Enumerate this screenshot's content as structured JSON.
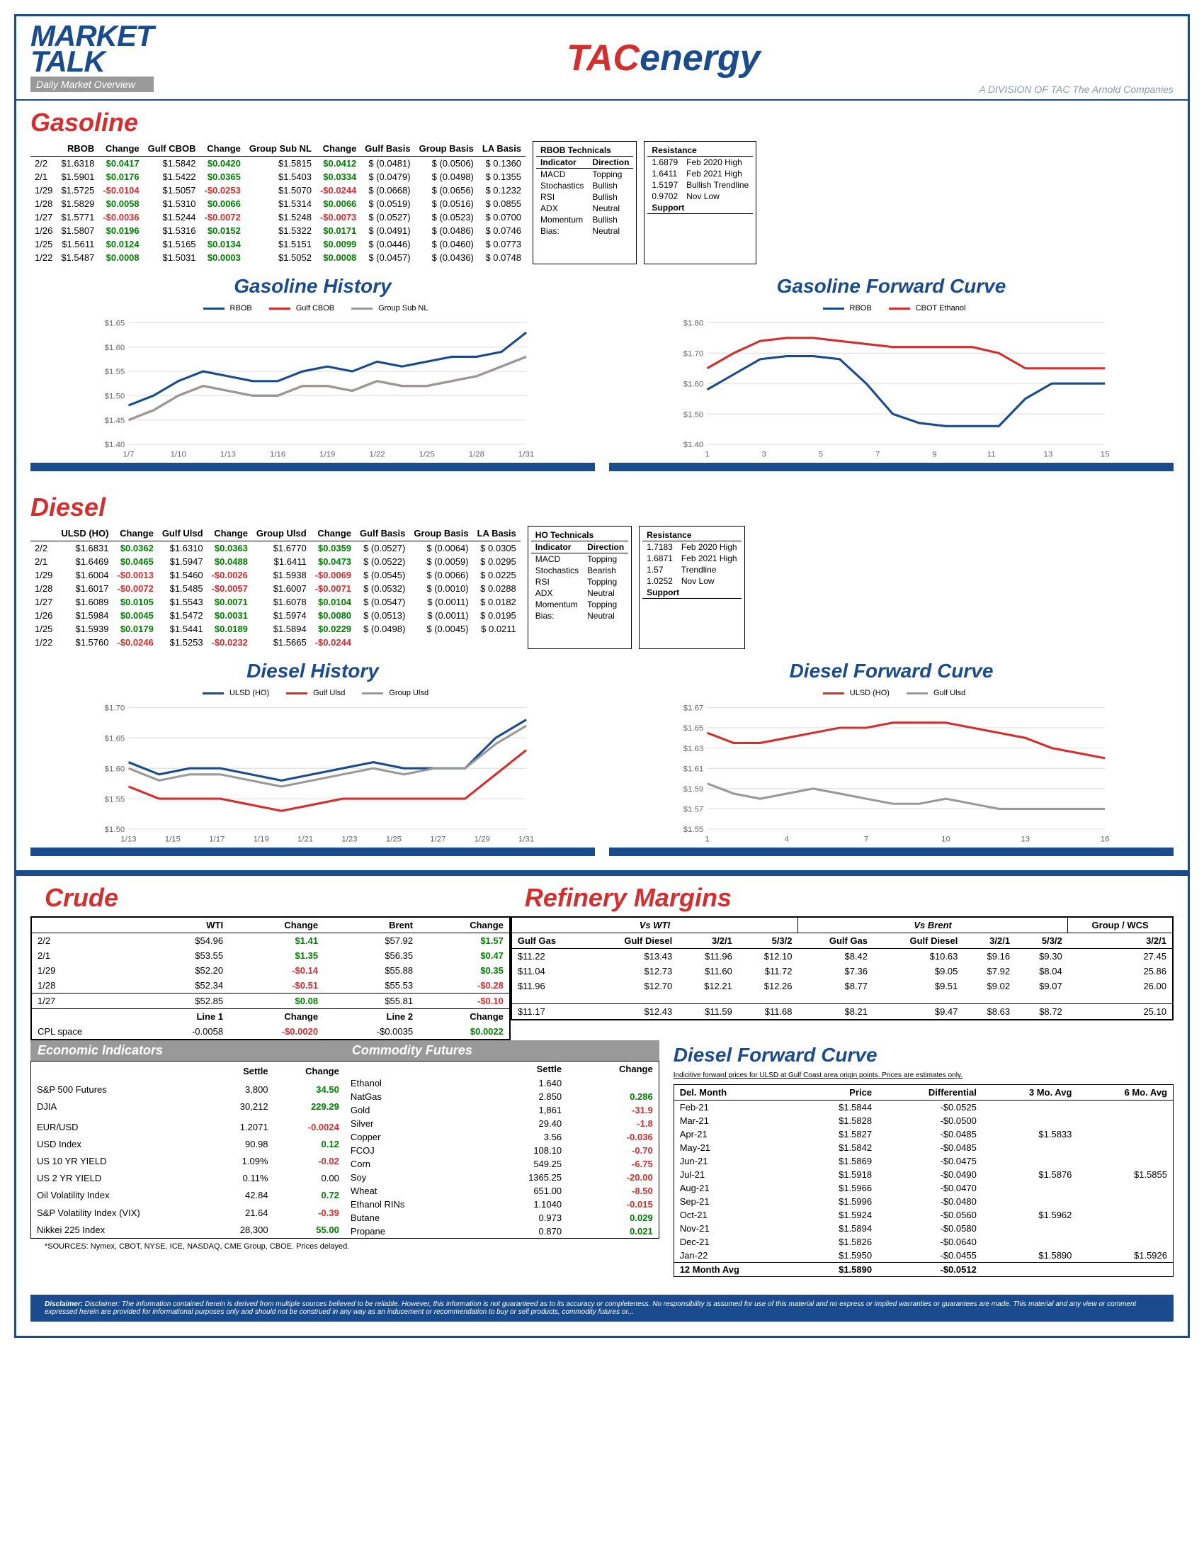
{
  "header": {
    "brand1": "MARKET",
    "brand2": "TALK",
    "sub": "Daily Market Overview",
    "tac_t": "TAC",
    "tac_e": "energy",
    "division": "A DIVISION OF TAC The Arnold Companies"
  },
  "gasoline": {
    "title": "Gasoline",
    "columns": [
      "",
      "RBOB",
      "Change",
      "Gulf CBOB",
      "Change",
      "Group Sub NL",
      "Change",
      "Gulf Basis",
      "Group Basis",
      "LA Basis"
    ],
    "rows": [
      [
        "2/2",
        "$1.6318",
        "$0.0417",
        "$1.5842",
        "$0.0420",
        "$1.5815",
        "$0.0412",
        "$ (0.0481)",
        "$ (0.0506)",
        "$ 0.1360"
      ],
      [
        "2/1",
        "$1.5901",
        "$0.0176",
        "$1.5422",
        "$0.0365",
        "$1.5403",
        "$0.0334",
        "$ (0.0479)",
        "$ (0.0498)",
        "$ 0.1355"
      ],
      [
        "1/29",
        "$1.5725",
        "-$0.0104",
        "$1.5057",
        "-$0.0253",
        "$1.5070",
        "-$0.0244",
        "$ (0.0668)",
        "$ (0.0656)",
        "$ 0.1232"
      ],
      [
        "1/28",
        "$1.5829",
        "$0.0058",
        "$1.5310",
        "$0.0066",
        "$1.5314",
        "$0.0066",
        "$ (0.0519)",
        "$ (0.0516)",
        "$ 0.0855"
      ],
      [
        "1/27",
        "$1.5771",
        "-$0.0036",
        "$1.5244",
        "-$0.0072",
        "$1.5248",
        "-$0.0073",
        "$ (0.0527)",
        "$ (0.0523)",
        "$ 0.0700"
      ],
      [
        "1/26",
        "$1.5807",
        "$0.0196",
        "$1.5316",
        "$0.0152",
        "$1.5322",
        "$0.0171",
        "$ (0.0491)",
        "$ (0.0486)",
        "$ 0.0746"
      ],
      [
        "1/25",
        "$1.5611",
        "$0.0124",
        "$1.5165",
        "$0.0134",
        "$1.5151",
        "$0.0099",
        "$ (0.0446)",
        "$ (0.0460)",
        "$ 0.0773"
      ],
      [
        "1/22",
        "$1.5487",
        "$0.0008",
        "$1.5031",
        "$0.0003",
        "$1.5052",
        "$0.0008",
        "$ (0.0457)",
        "$ (0.0436)",
        "$ 0.0748"
      ]
    ],
    "tech_title": "RBOB Technicals",
    "tech_hdr": [
      "Indicator",
      "Direction"
    ],
    "tech": [
      [
        "MACD",
        "Topping"
      ],
      [
        "Stochastics",
        "Bullish"
      ],
      [
        "RSI",
        "Bullish"
      ],
      [
        "ADX",
        "Neutral"
      ],
      [
        "Momentum",
        "Bullish"
      ],
      [
        "Bias:",
        "Neutral"
      ]
    ],
    "res_title": "Resistance",
    "res": [
      [
        "1.6879",
        "Feb 2020 High"
      ],
      [
        "1.6411",
        "Feb 2021 High"
      ],
      [
        "1.5197",
        "Bullish Trendline"
      ],
      [
        "0.9702",
        "Nov Low"
      ]
    ],
    "sup_title": "Support"
  },
  "gas_history": {
    "title": "Gasoline History",
    "legend": [
      {
        "name": "RBOB",
        "color": "#1a4b8c"
      },
      {
        "name": "Gulf CBOB",
        "color": "#d32f2f"
      },
      {
        "name": "Group Sub NL",
        "color": "#999"
      }
    ],
    "ylim": [
      1.4,
      1.65
    ],
    "yticks": [
      1.4,
      1.45,
      1.5,
      1.55,
      1.6,
      1.65
    ],
    "xlabels": [
      "1/7",
      "1/10",
      "1/13",
      "1/16",
      "1/19",
      "1/22",
      "1/25",
      "1/28",
      "1/31"
    ],
    "series": {
      "rbob": [
        1.48,
        1.5,
        1.53,
        1.55,
        1.54,
        1.53,
        1.53,
        1.55,
        1.56,
        1.55,
        1.57,
        1.56,
        1.57,
        1.58,
        1.58,
        1.59,
        1.63
      ],
      "gulf": [
        1.45,
        1.47,
        1.5,
        1.52,
        1.51,
        1.5,
        1.5,
        1.52,
        1.52,
        1.51,
        1.53,
        1.52,
        1.52,
        1.53,
        1.54,
        1.56,
        1.58
      ],
      "group": [
        1.45,
        1.47,
        1.5,
        1.52,
        1.51,
        1.5,
        1.5,
        1.52,
        1.52,
        1.51,
        1.53,
        1.52,
        1.52,
        1.53,
        1.54,
        1.56,
        1.58
      ]
    }
  },
  "gas_fwd": {
    "title": "Gasoline Forward Curve",
    "legend": [
      {
        "name": "RBOB",
        "color": "#1a4b8c"
      },
      {
        "name": "CBOT Ethanol",
        "color": "#d32f2f"
      }
    ],
    "ylim": [
      1.4,
      1.8
    ],
    "yticks": [
      1.4,
      1.5,
      1.6,
      1.7,
      1.8
    ],
    "xlabels": [
      "1",
      "3",
      "5",
      "7",
      "9",
      "11",
      "13",
      "15"
    ],
    "series": {
      "rbob": [
        1.58,
        1.63,
        1.68,
        1.69,
        1.69,
        1.68,
        1.6,
        1.5,
        1.47,
        1.46,
        1.46,
        1.46,
        1.55,
        1.6,
        1.6,
        1.6
      ],
      "ethanol": [
        1.65,
        1.7,
        1.74,
        1.75,
        1.75,
        1.74,
        1.73,
        1.72,
        1.72,
        1.72,
        1.72,
        1.7,
        1.65,
        1.65,
        1.65,
        1.65
      ]
    }
  },
  "diesel": {
    "title": "Diesel",
    "columns": [
      "",
      "ULSD (HO)",
      "Change",
      "Gulf Ulsd",
      "Change",
      "Group Ulsd",
      "Change",
      "Gulf Basis",
      "Group Basis",
      "LA Basis"
    ],
    "rows": [
      [
        "2/2",
        "$1.6831",
        "$0.0362",
        "$1.6310",
        "$0.0363",
        "$1.6770",
        "$0.0359",
        "$ (0.0527)",
        "$ (0.0064)",
        "$ 0.0305"
      ],
      [
        "2/1",
        "$1.6469",
        "$0.0465",
        "$1.5947",
        "$0.0488",
        "$1.6411",
        "$0.0473",
        "$ (0.0522)",
        "$ (0.0059)",
        "$ 0.0295"
      ],
      [
        "1/29",
        "$1.6004",
        "-$0.0013",
        "$1.5460",
        "-$0.0026",
        "$1.5938",
        "-$0.0069",
        "$ (0.0545)",
        "$ (0.0066)",
        "$ 0.0225"
      ],
      [
        "1/28",
        "$1.6017",
        "-$0.0072",
        "$1.5485",
        "-$0.0057",
        "$1.6007",
        "-$0.0071",
        "$ (0.0532)",
        "$ (0.0010)",
        "$ 0.0288"
      ],
      [
        "1/27",
        "$1.6089",
        "$0.0105",
        "$1.5543",
        "$0.0071",
        "$1.6078",
        "$0.0104",
        "$ (0.0547)",
        "$ (0.0011)",
        "$ 0.0182"
      ],
      [
        "1/26",
        "$1.5984",
        "$0.0045",
        "$1.5472",
        "$0.0031",
        "$1.5974",
        "$0.0080",
        "$ (0.0513)",
        "$ (0.0011)",
        "$ 0.0195"
      ],
      [
        "1/25",
        "$1.5939",
        "$0.0179",
        "$1.5441",
        "$0.0189",
        "$1.5894",
        "$0.0229",
        "$ (0.0498)",
        "$ (0.0045)",
        "$ 0.0211"
      ],
      [
        "1/22",
        "$1.5760",
        "-$0.0246",
        "$1.5253",
        "-$0.0232",
        "$1.5665",
        "-$0.0244",
        "",
        "",
        ""
      ]
    ],
    "tech_title": "HO Technicals",
    "tech_hdr": [
      "Indicator",
      "Direction"
    ],
    "tech": [
      [
        "MACD",
        "Topping"
      ],
      [
        "Stochastics",
        "Bearish"
      ],
      [
        "RSI",
        "Topping"
      ],
      [
        "ADX",
        "Neutral"
      ],
      [
        "Momentum",
        "Topping"
      ],
      [
        "Bias:",
        "Neutral"
      ]
    ],
    "res_title": "Resistance",
    "res": [
      [
        "1.7183",
        "Feb 2020 High"
      ],
      [
        "1.6871",
        "Feb 2021 High"
      ],
      [
        "1.57",
        "Trendline"
      ],
      [
        "1.0252",
        "Nov Low"
      ]
    ],
    "sup_title": "Support"
  },
  "diesel_history": {
    "title": "Diesel History",
    "legend": [
      {
        "name": "ULSD (HO)",
        "color": "#1a4b8c"
      },
      {
        "name": "Gulf Ulsd",
        "color": "#d32f2f"
      },
      {
        "name": "Group Ulsd",
        "color": "#999"
      }
    ],
    "ylim": [
      1.5,
      1.7
    ],
    "yticks": [
      1.5,
      1.55,
      1.6,
      1.65,
      1.7
    ],
    "xlabels": [
      "1/13",
      "1/15",
      "1/17",
      "1/19",
      "1/21",
      "1/23",
      "1/25",
      "1/27",
      "1/29",
      "1/31"
    ],
    "series": {
      "ulsd": [
        1.61,
        1.59,
        1.6,
        1.6,
        1.59,
        1.58,
        1.59,
        1.6,
        1.61,
        1.6,
        1.6,
        1.6,
        1.65,
        1.68
      ],
      "gulf": [
        1.57,
        1.55,
        1.55,
        1.55,
        1.54,
        1.53,
        1.54,
        1.55,
        1.55,
        1.55,
        1.55,
        1.55,
        1.59,
        1.63
      ],
      "group": [
        1.6,
        1.58,
        1.59,
        1.59,
        1.58,
        1.57,
        1.58,
        1.59,
        1.6,
        1.59,
        1.6,
        1.6,
        1.64,
        1.67
      ]
    }
  },
  "diesel_fwd": {
    "title": "Diesel Forward Curve",
    "legend": [
      {
        "name": "ULSD (HO)",
        "color": "#d32f2f"
      },
      {
        "name": "Gulf Ulsd",
        "color": "#999"
      }
    ],
    "ylim": [
      1.55,
      1.67
    ],
    "yticks": [
      1.55,
      1.57,
      1.59,
      1.61,
      1.63,
      1.65,
      1.67
    ],
    "xlabels": [
      "1",
      "4",
      "7",
      "10",
      "13",
      "16"
    ],
    "series": {
      "ulsd": [
        1.645,
        1.635,
        1.635,
        1.64,
        1.645,
        1.65,
        1.65,
        1.655,
        1.655,
        1.655,
        1.65,
        1.645,
        1.64,
        1.63,
        1.625,
        1.62
      ],
      "gulf": [
        1.595,
        1.585,
        1.58,
        1.585,
        1.59,
        1.585,
        1.58,
        1.575,
        1.575,
        1.58,
        1.575,
        1.57,
        1.57,
        1.57,
        1.57,
        1.57
      ]
    }
  },
  "crude": {
    "title": "Crude",
    "columns": [
      "",
      "WTI",
      "Change",
      "Brent",
      "Change"
    ],
    "rows": [
      [
        "2/2",
        "$54.96",
        "$1.41",
        "$57.92",
        "$1.57"
      ],
      [
        "2/1",
        "$53.55",
        "$1.35",
        "$56.35",
        "$0.47"
      ],
      [
        "1/29",
        "$52.20",
        "-$0.14",
        "$55.88",
        "$0.35"
      ],
      [
        "1/28",
        "$52.34",
        "-$0.51",
        "$55.53",
        "-$0.28"
      ]
    ],
    "row_sep": [
      "1/27",
      "$52.85",
      "$0.08",
      "$55.81",
      "-$0.10"
    ],
    "cpl_hdr": [
      "",
      "Line 1",
      "Change",
      "Line 2",
      "Change"
    ],
    "cpl": [
      "CPL space",
      "-0.0058",
      "-$0.0020",
      "-$0.0035",
      "$0.0022"
    ]
  },
  "refinery": {
    "title": "Refinery Margins",
    "group_hdr": [
      "Vs WTI",
      "Vs Brent",
      "Group / WCS"
    ],
    "columns": [
      "Gulf Gas",
      "Gulf Diesel",
      "3/2/1",
      "5/3/2",
      "Gulf Gas",
      "Gulf Diesel",
      "3/2/1",
      "5/3/2",
      "3/2/1"
    ],
    "rows": [
      [
        "$11.22",
        "$13.43",
        "$11.96",
        "$12.10",
        "$8.42",
        "$10.63",
        "$9.16",
        "$9.30",
        "27.45"
      ],
      [
        "$11.04",
        "$12.73",
        "$11.60",
        "$11.72",
        "$7.36",
        "$9.05",
        "$7.92",
        "$8.04",
        "25.86"
      ],
      [
        "$11.96",
        "$12.70",
        "$12.21",
        "$12.26",
        "$8.77",
        "$9.51",
        "$9.02",
        "$9.07",
        "26.00"
      ]
    ],
    "row_sep": [
      "$11.17",
      "$12.43",
      "$11.59",
      "$11.68",
      "$8.21",
      "$9.47",
      "$8.63",
      "$8.72",
      "25.10"
    ]
  },
  "econ": {
    "title": "Economic Indicators",
    "columns": [
      "",
      "Settle",
      "Change"
    ],
    "rows": [
      [
        "S&P 500 Futures",
        "3,800",
        "34.50",
        "pos"
      ],
      [
        "DJIA",
        "30,212",
        "229.29",
        "pos"
      ],
      [
        "",
        "",
        "",
        ""
      ],
      [
        "EUR/USD",
        "1.2071",
        "-0.0024",
        "neg"
      ],
      [
        "USD Index",
        "90.98",
        "0.12",
        "pos"
      ],
      [
        "US 10 YR YIELD",
        "1.09%",
        "-0.02",
        "neg"
      ],
      [
        "US 2 YR YIELD",
        "0.11%",
        "0.00",
        ""
      ],
      [
        "Oil Volatility Index",
        "42.84",
        "0.72",
        "pos"
      ],
      [
        "S&P Volatility Index (VIX)",
        "21.64",
        "-0.39",
        "neg"
      ],
      [
        "Nikkei 225 Index",
        "28,300",
        "55.00",
        "pos"
      ]
    ]
  },
  "futures": {
    "title": "Commodity Futures",
    "columns": [
      "",
      "Settle",
      "Change"
    ],
    "rows": [
      [
        "Ethanol",
        "1.640",
        "",
        ""
      ],
      [
        "NatGas",
        "2.850",
        "0.286",
        "pos"
      ],
      [
        "Gold",
        "1,861",
        "-31.9",
        "neg"
      ],
      [
        "Silver",
        "29.40",
        "-1.8",
        "neg"
      ],
      [
        "Copper",
        "3.56",
        "-0.036",
        "neg"
      ],
      [
        "FCOJ",
        "108.10",
        "-0.70",
        "neg"
      ],
      [
        "Corn",
        "549.25",
        "-6.75",
        "neg"
      ],
      [
        "Soy",
        "1365.25",
        "-20.00",
        "neg"
      ],
      [
        "Wheat",
        "651.00",
        "-8.50",
        "neg"
      ],
      [
        "Ethanol RINs",
        "1.1040",
        "-0.015",
        "neg"
      ],
      [
        "Butane",
        "0.973",
        "0.029",
        "pos"
      ],
      [
        "Propane",
        "0.870",
        "0.021",
        "pos"
      ]
    ]
  },
  "diesel_fwd_table": {
    "title": "Diesel Forward Curve",
    "note": "Indicitive forward prices for ULSD at Gulf Coast area origin points.  Prices are estimates only.",
    "columns": [
      "Del. Month",
      "Price",
      "Differential",
      "3 Mo. Avg",
      "6 Mo. Avg"
    ],
    "rows": [
      [
        "Feb-21",
        "$1.5844",
        "-$0.0525",
        "",
        ""
      ],
      [
        "Mar-21",
        "$1.5828",
        "-$0.0500",
        "",
        ""
      ],
      [
        "Apr-21",
        "$1.5827",
        "-$0.0485",
        "$1.5833",
        ""
      ],
      [
        "May-21",
        "$1.5842",
        "-$0.0485",
        "",
        ""
      ],
      [
        "Jun-21",
        "$1.5869",
        "-$0.0475",
        "",
        ""
      ],
      [
        "Jul-21",
        "$1.5918",
        "-$0.0490",
        "$1.5876",
        "$1.5855"
      ],
      [
        "Aug-21",
        "$1.5966",
        "-$0.0470",
        "",
        ""
      ],
      [
        "Sep-21",
        "$1.5996",
        "-$0.0480",
        "",
        ""
      ],
      [
        "Oct-21",
        "$1.5924",
        "-$0.0560",
        "$1.5962",
        ""
      ],
      [
        "Nov-21",
        "$1.5894",
        "-$0.0580",
        "",
        ""
      ],
      [
        "Dec-21",
        "$1.5826",
        "-$0.0640",
        "",
        ""
      ],
      [
        "Jan-22",
        "$1.5950",
        "-$0.0455",
        "$1.5890",
        "$1.5926"
      ]
    ],
    "avg": [
      "12 Month Avg",
      "$1.5890",
      "-$0.0512",
      "",
      ""
    ]
  },
  "sources": "*SOURCES: Nymex, CBOT, NYSE, ICE, NASDAQ, CME Group, CBOE.   Prices delayed.",
  "disclaimer": "Disclaimer: The information contained herein is derived from multiple sources believed to be reliable. However, this information is not guaranteed as to its accuracy or completeness. No responsibility is assumed for use of this material and no express or implied warranties or guarantees are made. This material and any view or comment expressed herein are provided for informational purposes only and should not be construed in any way as an inducement or recommendation to buy or sell products, commodity futures or..."
}
